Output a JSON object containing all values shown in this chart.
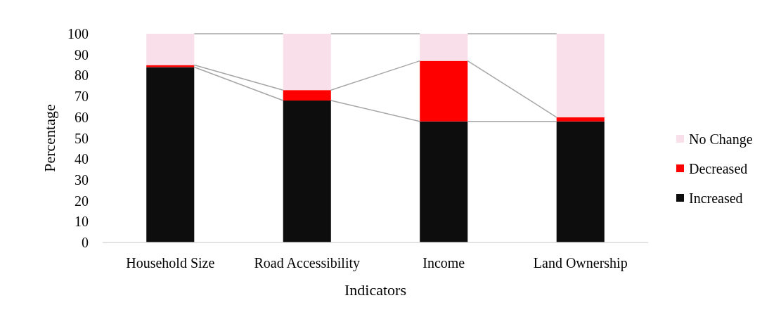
{
  "chart_data": {
    "type": "bar",
    "stacked": true,
    "xlabel": "Indicators",
    "ylabel": "Percentage",
    "categories": [
      "Household Size",
      "Road Accessibility",
      "Income",
      "Land Ownership"
    ],
    "series": [
      {
        "name": "Increased",
        "color": "#0d0d0d",
        "values": [
          84,
          68,
          58,
          58
        ]
      },
      {
        "name": "Decreased",
        "color": "#ff0000",
        "values": [
          1,
          5,
          29,
          2
        ]
      },
      {
        "name": "No Change",
        "color": "#f9dfe9",
        "values": [
          15,
          27,
          13,
          40
        ]
      }
    ],
    "ylim": [
      0,
      100
    ],
    "yticks": [
      0,
      10,
      20,
      30,
      40,
      50,
      60,
      70,
      80,
      90,
      100
    ],
    "grid": false,
    "legend": "right"
  }
}
